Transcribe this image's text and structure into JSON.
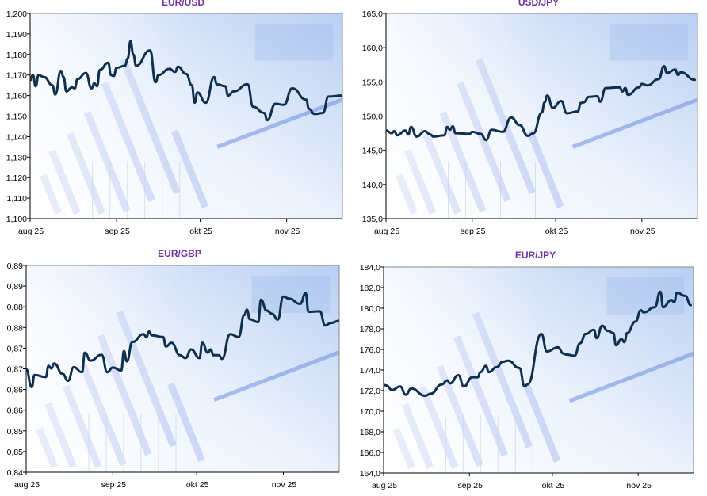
{
  "colors": {
    "line": "#0f2f4f",
    "title": "#7030A0",
    "axis": "#000000",
    "plot_border": "#8a8a8a",
    "background_tint": "#c9dbf7"
  },
  "chart_data": [
    {
      "type": "line",
      "title": "EUR/USD",
      "xlabel": "",
      "ylabel": "",
      "xlim": [
        "2025-08-01",
        "2025-11-21"
      ],
      "x_ticks": [
        {
          "date": "2025-08-01",
          "label": "aug 25"
        },
        {
          "date": "2025-09-01",
          "label": "sep 25"
        },
        {
          "date": "2025-10-01",
          "label": "okt 25"
        },
        {
          "date": "2025-11-01",
          "label": "nov 25"
        }
      ],
      "ylim": [
        1.1,
        1.2
      ],
      "y_ticks": [
        {
          "value": 1.1,
          "label": "1,100"
        },
        {
          "value": 1.11,
          "label": "1,110"
        },
        {
          "value": 1.12,
          "label": "1,120"
        },
        {
          "value": 1.13,
          "label": "1,130"
        },
        {
          "value": 1.14,
          "label": "1,140"
        },
        {
          "value": 1.15,
          "label": "1,150"
        },
        {
          "value": 1.16,
          "label": "1,160"
        },
        {
          "value": 1.17,
          "label": "1,170"
        },
        {
          "value": 1.18,
          "label": "1,180"
        },
        {
          "value": 1.19,
          "label": "1,190"
        },
        {
          "value": 1.2,
          "label": "1,200"
        }
      ],
      "grid": false,
      "points": [
        [
          "2025-08-01",
          1.1675
        ],
        [
          "2025-08-02",
          1.17
        ],
        [
          "2025-08-03",
          1.1645
        ],
        [
          "2025-08-04",
          1.17
        ],
        [
          "2025-08-06",
          1.169
        ],
        [
          "2025-08-09",
          1.165
        ],
        [
          "2025-08-10",
          1.1605
        ],
        [
          "2025-08-12",
          1.172
        ],
        [
          "2025-08-13",
          1.169
        ],
        [
          "2025-08-14",
          1.162
        ],
        [
          "2025-08-16",
          1.164
        ],
        [
          "2025-08-17",
          1.1635
        ],
        [
          "2025-08-18",
          1.168
        ],
        [
          "2025-08-21",
          1.171
        ],
        [
          "2025-08-23",
          1.1635
        ],
        [
          "2025-08-24",
          1.166
        ],
        [
          "2025-08-25",
          1.1645
        ],
        [
          "2025-08-26",
          1.1725
        ],
        [
          "2025-08-29",
          1.176
        ],
        [
          "2025-08-30",
          1.17
        ],
        [
          "2025-08-31",
          1.1695
        ],
        [
          "2025-09-01",
          1.1735
        ],
        [
          "2025-09-04",
          1.1745
        ],
        [
          "2025-09-05",
          1.178
        ],
        [
          "2025-09-06",
          1.1865
        ],
        [
          "2025-09-07",
          1.18
        ],
        [
          "2025-09-08",
          1.1745
        ],
        [
          "2025-09-13",
          1.182
        ],
        [
          "2025-09-15",
          1.1665
        ],
        [
          "2025-09-16",
          1.17
        ],
        [
          "2025-09-20",
          1.173
        ],
        [
          "2025-09-22",
          1.1715
        ],
        [
          "2025-09-23",
          1.174
        ],
        [
          "2025-09-26",
          1.1705
        ],
        [
          "2025-09-28",
          1.165
        ],
        [
          "2025-09-29",
          1.1565
        ],
        [
          "2025-09-30",
          1.1615
        ],
        [
          "2025-10-03",
          1.1565
        ],
        [
          "2025-10-06",
          1.169
        ],
        [
          "2025-10-07",
          1.1655
        ],
        [
          "2025-10-10",
          1.1645
        ],
        [
          "2025-10-11",
          1.16
        ],
        [
          "2025-10-13",
          1.162
        ],
        [
          "2025-10-18",
          1.1655
        ],
        [
          "2025-10-20",
          1.1545
        ],
        [
          "2025-10-24",
          1.1515
        ],
        [
          "2025-10-25",
          1.148
        ],
        [
          "2025-10-28",
          1.156
        ],
        [
          "2025-10-31",
          1.1555
        ],
        [
          "2025-11-03",
          1.1635
        ],
        [
          "2025-11-08",
          1.158
        ],
        [
          "2025-11-09",
          1.1535
        ],
        [
          "2025-11-11",
          1.151
        ],
        [
          "2025-11-14",
          1.1515
        ],
        [
          "2025-11-16",
          1.1595
        ],
        [
          "2025-11-21",
          1.16
        ]
      ]
    },
    {
      "type": "line",
      "title": "USD/JPY",
      "xlabel": "",
      "ylabel": "",
      "xlim": [
        "2025-08-01",
        "2025-11-21"
      ],
      "x_ticks": [
        {
          "date": "2025-08-01",
          "label": "aug 25"
        },
        {
          "date": "2025-09-01",
          "label": "sep 25"
        },
        {
          "date": "2025-10-01",
          "label": "okt 25"
        },
        {
          "date": "2025-11-01",
          "label": "nov 25"
        }
      ],
      "ylim": [
        135,
        165
      ],
      "y_ticks": [
        {
          "value": 135,
          "label": "135,0"
        },
        {
          "value": 140,
          "label": "140,0"
        },
        {
          "value": 145,
          "label": "145,0"
        },
        {
          "value": 150,
          "label": "150,0"
        },
        {
          "value": 155,
          "label": "155,0"
        },
        {
          "value": 160,
          "label": "160,0"
        },
        {
          "value": 165,
          "label": "165,0"
        }
      ],
      "grid": false,
      "points": [
        [
          "2025-08-01",
          147.9
        ],
        [
          "2025-08-03",
          147.5
        ],
        [
          "2025-08-04",
          147.8
        ],
        [
          "2025-08-05",
          147.2
        ],
        [
          "2025-08-08",
          147.9
        ],
        [
          "2025-08-09",
          147.3
        ],
        [
          "2025-08-10",
          148.4
        ],
        [
          "2025-08-12",
          147.0
        ],
        [
          "2025-08-15",
          147.8
        ],
        [
          "2025-08-17",
          147.3
        ],
        [
          "2025-08-18",
          147.0
        ],
        [
          "2025-08-22",
          147.2
        ],
        [
          "2025-08-23",
          148.4
        ],
        [
          "2025-08-24",
          148.0
        ],
        [
          "2025-08-25",
          148.5
        ],
        [
          "2025-08-26",
          147.5
        ],
        [
          "2025-08-31",
          147.4
        ],
        [
          "2025-09-01",
          147.7
        ],
        [
          "2025-09-04",
          147.4
        ],
        [
          "2025-09-06",
          146.5
        ],
        [
          "2025-09-08",
          148.0
        ],
        [
          "2025-09-12",
          147.7
        ],
        [
          "2025-09-15",
          149.8
        ],
        [
          "2025-09-18",
          148.7
        ],
        [
          "2025-09-21",
          147.1
        ],
        [
          "2025-09-23",
          147.5
        ],
        [
          "2025-09-26",
          150.5
        ],
        [
          "2025-09-27",
          152.0
        ],
        [
          "2025-09-28",
          153.0
        ],
        [
          "2025-09-30",
          151.2
        ],
        [
          "2025-10-03",
          152.2
        ],
        [
          "2025-10-05",
          150.4
        ],
        [
          "2025-10-09",
          150.7
        ],
        [
          "2025-10-10",
          151.9
        ],
        [
          "2025-10-11",
          152.0
        ],
        [
          "2025-10-13",
          152.8
        ],
        [
          "2025-10-16",
          152.9
        ],
        [
          "2025-10-17",
          152.1
        ],
        [
          "2025-10-19",
          154.1
        ],
        [
          "2025-10-24",
          154.2
        ],
        [
          "2025-10-25",
          153.6
        ],
        [
          "2025-10-26",
          154.1
        ],
        [
          "2025-10-27",
          153.1
        ],
        [
          "2025-10-31",
          154.2
        ],
        [
          "2025-11-01",
          154.7
        ],
        [
          "2025-11-03",
          154.5
        ],
        [
          "2025-11-07",
          155.4
        ],
        [
          "2025-11-09",
          157.3
        ],
        [
          "2025-11-10",
          156.3
        ],
        [
          "2025-11-13",
          156.8
        ],
        [
          "2025-11-14",
          156.0
        ],
        [
          "2025-11-15",
          156.4
        ],
        [
          "2025-11-20",
          155.3
        ]
      ]
    },
    {
      "type": "line",
      "title": "EUR/GBP",
      "xlabel": "",
      "ylabel": "",
      "xlim": [
        "2025-08-01",
        "2025-11-21"
      ],
      "x_ticks": [
        {
          "date": "2025-08-01",
          "label": "aug 25"
        },
        {
          "date": "2025-09-01",
          "label": "sep 25"
        },
        {
          "date": "2025-10-01",
          "label": "okt 25"
        },
        {
          "date": "2025-11-01",
          "label": "nov 25"
        }
      ],
      "ylim": [
        0.84,
        0.89
      ],
      "y_ticks": [
        {
          "value": 0.84,
          "label": "0,84"
        },
        {
          "value": 0.845,
          "label": "0,85"
        },
        {
          "value": 0.85,
          "label": "0,85"
        },
        {
          "value": 0.855,
          "label": "0,86"
        },
        {
          "value": 0.86,
          "label": "0,86"
        },
        {
          "value": 0.865,
          "label": "0,87"
        },
        {
          "value": 0.87,
          "label": "0,87"
        },
        {
          "value": 0.875,
          "label": "0,88"
        },
        {
          "value": 0.88,
          "label": "0,88"
        },
        {
          "value": 0.885,
          "label": "0,89"
        },
        {
          "value": 0.89,
          "label": "0,89"
        }
      ],
      "grid": false,
      "points": [
        [
          "2025-08-01",
          0.8649
        ],
        [
          "2025-08-03",
          0.8606
        ],
        [
          "2025-08-04",
          0.8635
        ],
        [
          "2025-08-08",
          0.863
        ],
        [
          "2025-08-09",
          0.8657
        ],
        [
          "2025-08-10",
          0.8651
        ],
        [
          "2025-08-11",
          0.8663
        ],
        [
          "2025-08-14",
          0.8638
        ],
        [
          "2025-08-16",
          0.8621
        ],
        [
          "2025-08-18",
          0.8654
        ],
        [
          "2025-08-21",
          0.8642
        ],
        [
          "2025-08-22",
          0.8689
        ],
        [
          "2025-08-24",
          0.867
        ],
        [
          "2025-08-28",
          0.8684
        ],
        [
          "2025-08-30",
          0.8642
        ],
        [
          "2025-09-01",
          0.8653
        ],
        [
          "2025-09-04",
          0.8646
        ],
        [
          "2025-09-05",
          0.8693
        ],
        [
          "2025-09-06",
          0.8668
        ],
        [
          "2025-09-08",
          0.8715
        ],
        [
          "2025-09-12",
          0.8734
        ],
        [
          "2025-09-13",
          0.8727
        ],
        [
          "2025-09-14",
          0.874
        ],
        [
          "2025-09-15",
          0.8731
        ],
        [
          "2025-09-19",
          0.8727
        ],
        [
          "2025-09-20",
          0.8704
        ],
        [
          "2025-09-22",
          0.8713
        ],
        [
          "2025-09-25",
          0.8683
        ],
        [
          "2025-09-27",
          0.8676
        ],
        [
          "2025-09-29",
          0.8697
        ],
        [
          "2025-10-02",
          0.8676
        ],
        [
          "2025-10-03",
          0.8713
        ],
        [
          "2025-10-05",
          0.8689
        ],
        [
          "2025-10-06",
          0.8697
        ],
        [
          "2025-10-07",
          0.8683
        ],
        [
          "2025-10-09",
          0.8683
        ],
        [
          "2025-10-10",
          0.8674
        ],
        [
          "2025-10-13",
          0.8734
        ],
        [
          "2025-10-16",
          0.8727
        ],
        [
          "2025-10-18",
          0.878
        ],
        [
          "2025-10-19",
          0.8793
        ],
        [
          "2025-10-20",
          0.877
        ],
        [
          "2025-10-23",
          0.8763
        ],
        [
          "2025-10-24",
          0.8817
        ],
        [
          "2025-10-26",
          0.8791
        ],
        [
          "2025-10-28",
          0.8783
        ],
        [
          "2025-10-30",
          0.8769
        ],
        [
          "2025-11-01",
          0.8825
        ],
        [
          "2025-11-03",
          0.882
        ],
        [
          "2025-11-07",
          0.8807
        ],
        [
          "2025-11-09",
          0.8833
        ],
        [
          "2025-11-10",
          0.8788
        ],
        [
          "2025-11-14",
          0.8789
        ],
        [
          "2025-11-16",
          0.8755
        ],
        [
          "2025-11-18",
          0.8761
        ],
        [
          "2025-11-21",
          0.8766
        ]
      ]
    },
    {
      "type": "line",
      "title": "EUR/JPY",
      "xlabel": "",
      "ylabel": "",
      "xlim": [
        "2025-08-01",
        "2025-11-21"
      ],
      "x_ticks": [
        {
          "date": "2025-08-01",
          "label": "aug 25"
        },
        {
          "date": "2025-09-01",
          "label": "sep 25"
        },
        {
          "date": "2025-10-01",
          "label": "okt 25"
        },
        {
          "date": "2025-11-01",
          "label": "nov 25"
        }
      ],
      "ylim": [
        164,
        184
      ],
      "y_ticks": [
        {
          "value": 164,
          "label": "164,0"
        },
        {
          "value": 166,
          "label": "166,0"
        },
        {
          "value": 168,
          "label": "168,0"
        },
        {
          "value": 170,
          "label": "170,0"
        },
        {
          "value": 172,
          "label": "172,0"
        },
        {
          "value": 174,
          "label": "174,0"
        },
        {
          "value": 176,
          "label": "176,0"
        },
        {
          "value": 178,
          "label": "178,0"
        },
        {
          "value": 180,
          "label": "180,0"
        },
        {
          "value": 182,
          "label": "182,0"
        },
        {
          "value": 184,
          "label": "184,0"
        }
      ],
      "grid": false,
      "points": [
        [
          "2025-08-01",
          172.56
        ],
        [
          "2025-08-02",
          172.5
        ],
        [
          "2025-08-04",
          172.05
        ],
        [
          "2025-08-07",
          172.4
        ],
        [
          "2025-08-09",
          171.6
        ],
        [
          "2025-08-11",
          172.2
        ],
        [
          "2025-08-16",
          171.5
        ],
        [
          "2025-08-18",
          171.7
        ],
        [
          "2025-08-22",
          172.6
        ],
        [
          "2025-08-24",
          173.0
        ],
        [
          "2025-08-25",
          172.7
        ],
        [
          "2025-08-28",
          173.5
        ],
        [
          "2025-08-30",
          172.4
        ],
        [
          "2025-09-02",
          173.3
        ],
        [
          "2025-09-04",
          173.3
        ],
        [
          "2025-09-05",
          173.8
        ],
        [
          "2025-09-07",
          174.4
        ],
        [
          "2025-09-08",
          173.8
        ],
        [
          "2025-09-11",
          174.3
        ],
        [
          "2025-09-13",
          174.8
        ],
        [
          "2025-09-15",
          174.9
        ],
        [
          "2025-09-19",
          174.2
        ],
        [
          "2025-09-21",
          172.4
        ],
        [
          "2025-09-22",
          172.6
        ],
        [
          "2025-09-27",
          177.5
        ],
        [
          "2025-09-29",
          175.8
        ],
        [
          "2025-10-03",
          176.2
        ],
        [
          "2025-10-05",
          175.6
        ],
        [
          "2025-10-06",
          175.5
        ],
        [
          "2025-10-09",
          175.4
        ],
        [
          "2025-10-11",
          176.6
        ],
        [
          "2025-10-13",
          177.5
        ],
        [
          "2025-10-16",
          177.9
        ],
        [
          "2025-10-17",
          177.1
        ],
        [
          "2025-10-19",
          178.3
        ],
        [
          "2025-10-21",
          177.8
        ],
        [
          "2025-10-23",
          177.6
        ],
        [
          "2025-10-24",
          176.4
        ],
        [
          "2025-10-26",
          177.0
        ],
        [
          "2025-10-27",
          176.7
        ],
        [
          "2025-10-28",
          177.6
        ],
        [
          "2025-10-31",
          178.7
        ],
        [
          "2025-11-02",
          179.8
        ],
        [
          "2025-11-03",
          179.6
        ],
        [
          "2025-11-07",
          180.1
        ],
        [
          "2025-11-09",
          181.6
        ],
        [
          "2025-11-10",
          180.1
        ],
        [
          "2025-11-13",
          180.8
        ],
        [
          "2025-11-14",
          180.6
        ],
        [
          "2025-11-15",
          181.5
        ],
        [
          "2025-11-18",
          181.2
        ],
        [
          "2025-11-20",
          180.3
        ]
      ]
    }
  ]
}
